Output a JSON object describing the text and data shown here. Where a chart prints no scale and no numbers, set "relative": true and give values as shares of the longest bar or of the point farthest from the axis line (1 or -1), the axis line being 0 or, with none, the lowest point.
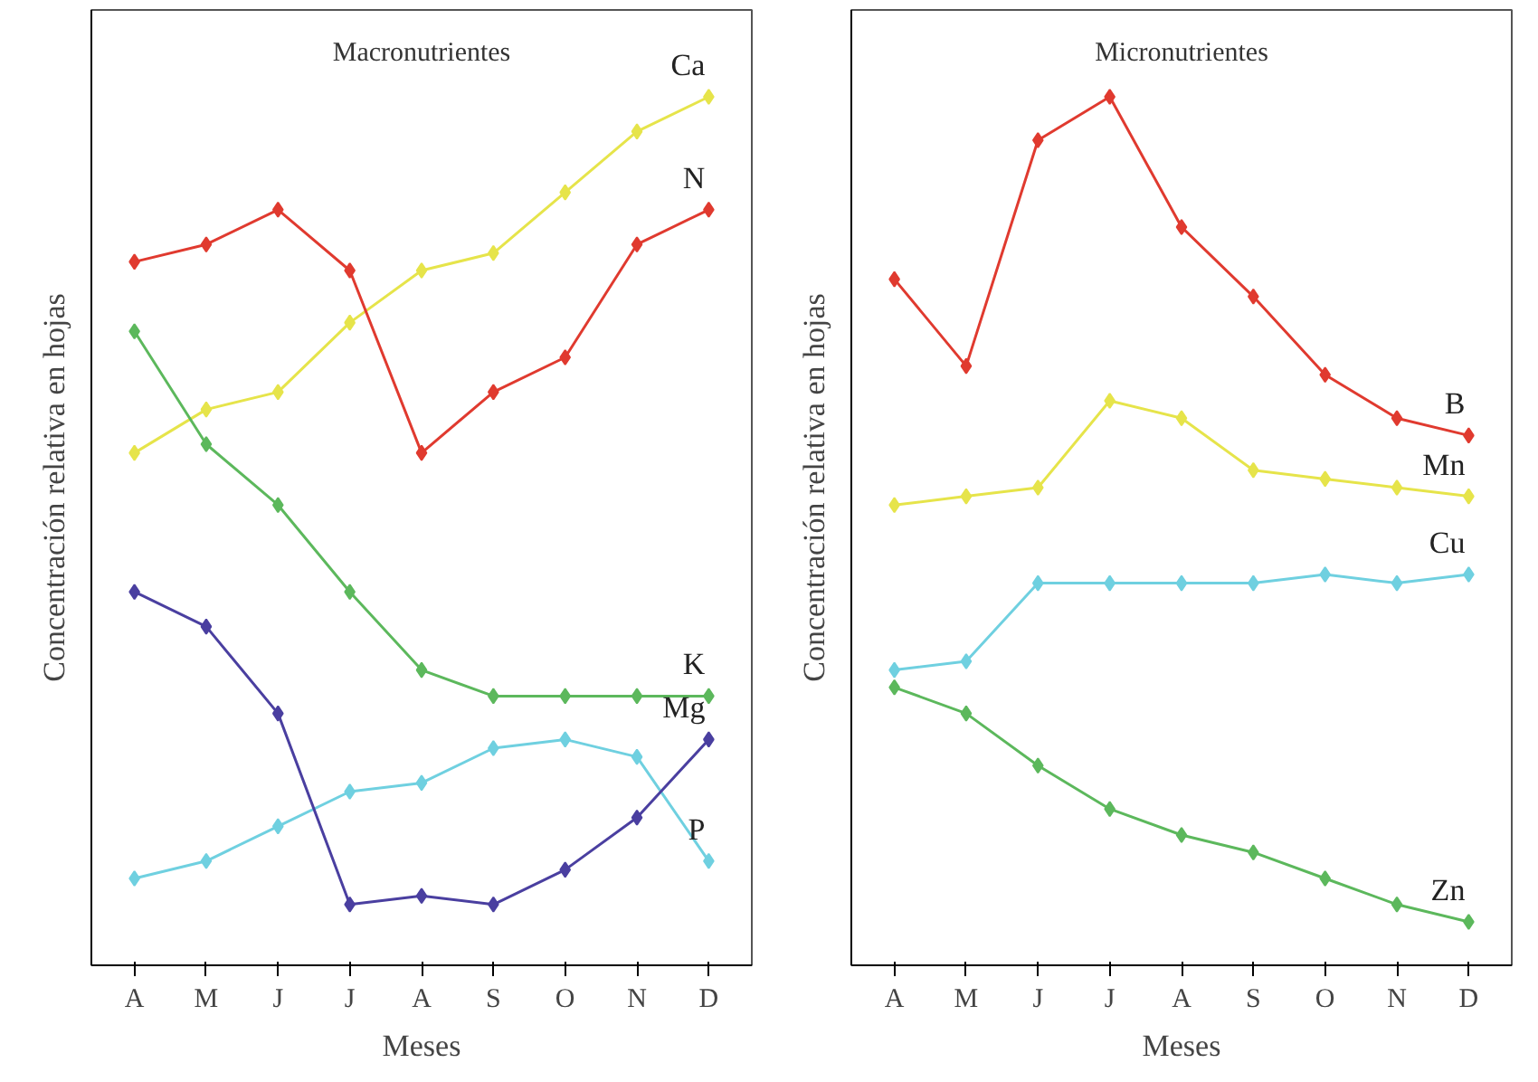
{
  "chart_data": [
    {
      "type": "line",
      "title": "Macronutrientes",
      "xlabel": "Meses",
      "ylabel": "Concentración relativa en hojas",
      "relative": true,
      "marker": "diamond",
      "legend": false,
      "grid": false,
      "categories": [
        "A",
        "M",
        "J",
        "J",
        "A",
        "S",
        "O",
        "N",
        "D"
      ],
      "series": [
        {
          "name": "Ca",
          "color": "#e6e44a",
          "values": [
            0.59,
            0.64,
            0.66,
            0.74,
            0.8,
            0.82,
            0.89,
            0.96,
            1.0
          ]
        },
        {
          "name": "N",
          "color": "#e03a2f",
          "values": [
            0.81,
            0.83,
            0.87,
            0.8,
            0.59,
            0.66,
            0.7,
            0.83,
            0.87
          ]
        },
        {
          "name": "K",
          "color": "#5cb85c",
          "values": [
            0.73,
            0.6,
            0.53,
            0.43,
            0.34,
            0.31,
            0.31,
            0.31,
            0.31
          ]
        },
        {
          "name": "P",
          "color": "#6fd0e0",
          "values": [
            0.1,
            0.12,
            0.16,
            0.2,
            0.21,
            0.25,
            0.26,
            0.24,
            0.12
          ]
        },
        {
          "name": "Mg",
          "color": "#4a3fa0",
          "values": [
            0.43,
            0.39,
            0.29,
            0.07,
            0.08,
            0.07,
            0.11,
            0.17,
            0.26
          ]
        }
      ]
    },
    {
      "type": "line",
      "title": "Micronutrientes",
      "xlabel": "Meses",
      "ylabel": "Concentración relativa en hojas",
      "relative": true,
      "marker": "diamond",
      "legend": false,
      "grid": false,
      "categories": [
        "A",
        "M",
        "J",
        "J",
        "A",
        "S",
        "O",
        "N",
        "D"
      ],
      "series": [
        {
          "name": "B",
          "color": "#e03a2f",
          "values": [
            0.79,
            0.69,
            0.95,
            1.0,
            0.85,
            0.77,
            0.68,
            0.63,
            0.61
          ]
        },
        {
          "name": "Mn",
          "color": "#e6e44a",
          "values": [
            0.53,
            0.54,
            0.55,
            0.65,
            0.63,
            0.57,
            0.56,
            0.55,
            0.54
          ]
        },
        {
          "name": "Cu",
          "color": "#6fd0e0",
          "values": [
            0.34,
            0.35,
            0.44,
            0.44,
            0.44,
            0.44,
            0.45,
            0.44,
            0.45
          ]
        },
        {
          "name": "Zn",
          "color": "#5cb85c",
          "values": [
            0.32,
            0.29,
            0.23,
            0.18,
            0.15,
            0.13,
            0.1,
            0.07,
            0.05
          ]
        }
      ]
    }
  ]
}
